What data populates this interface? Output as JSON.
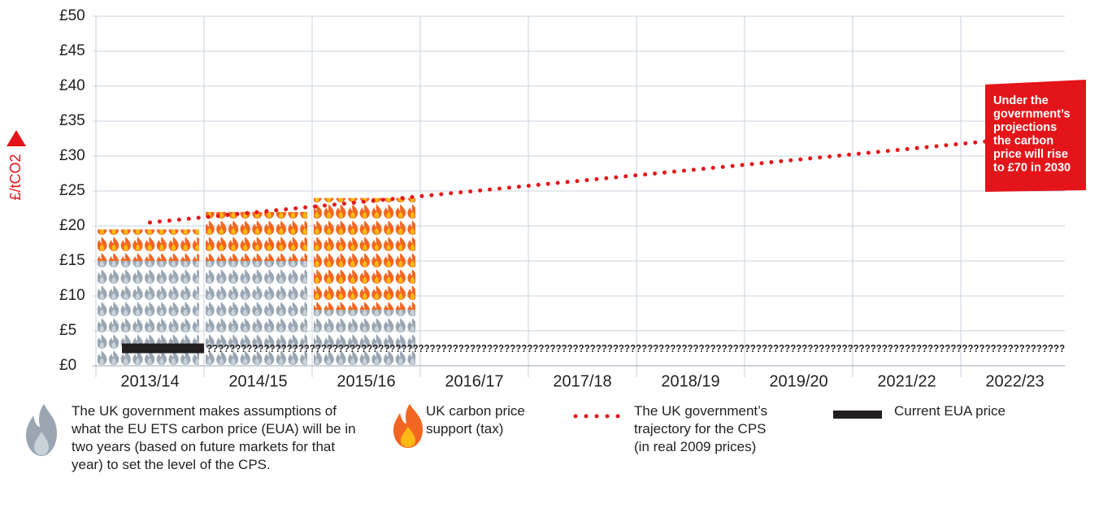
{
  "chart_data": {
    "type": "bar",
    "categories": [
      "2013/14",
      "2014/15",
      "2015/16",
      "2016/17",
      "2017/18",
      "2018/19",
      "2019/20",
      "2021/22",
      "2022/23"
    ],
    "series": [
      {
        "name": "The UK government makes assumptions of what the EU ETS carbon price (EUA) will be in two years (based on future markets for that year) to set the level of the CPS.",
        "color": "#9aa6b2",
        "kind": "icons",
        "values": [
          15,
          15,
          8,
          null,
          null,
          null,
          null,
          null,
          null
        ]
      },
      {
        "name": "UK carbon price support (tax)",
        "color": "#f26522",
        "kind": "icons",
        "values": [
          4.5,
          7,
          16,
          null,
          null,
          null,
          null,
          null,
          null
        ]
      },
      {
        "name": "The UK government’s trajectory for the CPS (in real 2009 prices)",
        "color": "#e3151a",
        "kind": "dotted",
        "values": [
          20.5,
          22,
          23.5,
          25,
          26.5,
          28,
          29.5,
          31,
          32.5
        ]
      },
      {
        "name": "Current EUA price",
        "color": "#231f20",
        "kind": "bar",
        "values": [
          2.5,
          null,
          null,
          null,
          null,
          null,
          null,
          null,
          null
        ]
      }
    ],
    "unknown_label": "??????????????????????????????????????????????????????????????????????????????????????????????????????????????????????????????????????????????????????",
    "y_label": "£/tCO2",
    "annotation": [
      "Under the",
      "government’s",
      "projections",
      "the carbon",
      "price will rise",
      "to £70 in 2030"
    ],
    "ylim": [
      0,
      50
    ],
    "yticks": [
      {
        "value": 0,
        "label": "£0"
      },
      {
        "value": 5,
        "label": "£5"
      },
      {
        "value": 10,
        "label": "£10"
      },
      {
        "value": 15,
        "label": "£15"
      },
      {
        "value": 20,
        "label": "£20"
      },
      {
        "value": 25,
        "label": "£25"
      },
      {
        "value": 30,
        "label": "£30"
      },
      {
        "value": 35,
        "label": "£35"
      },
      {
        "value": 40,
        "label": "£40"
      },
      {
        "value": 45,
        "label": "£45"
      },
      {
        "value": 50,
        "label": "£50"
      }
    ],
    "grid": true
  }
}
